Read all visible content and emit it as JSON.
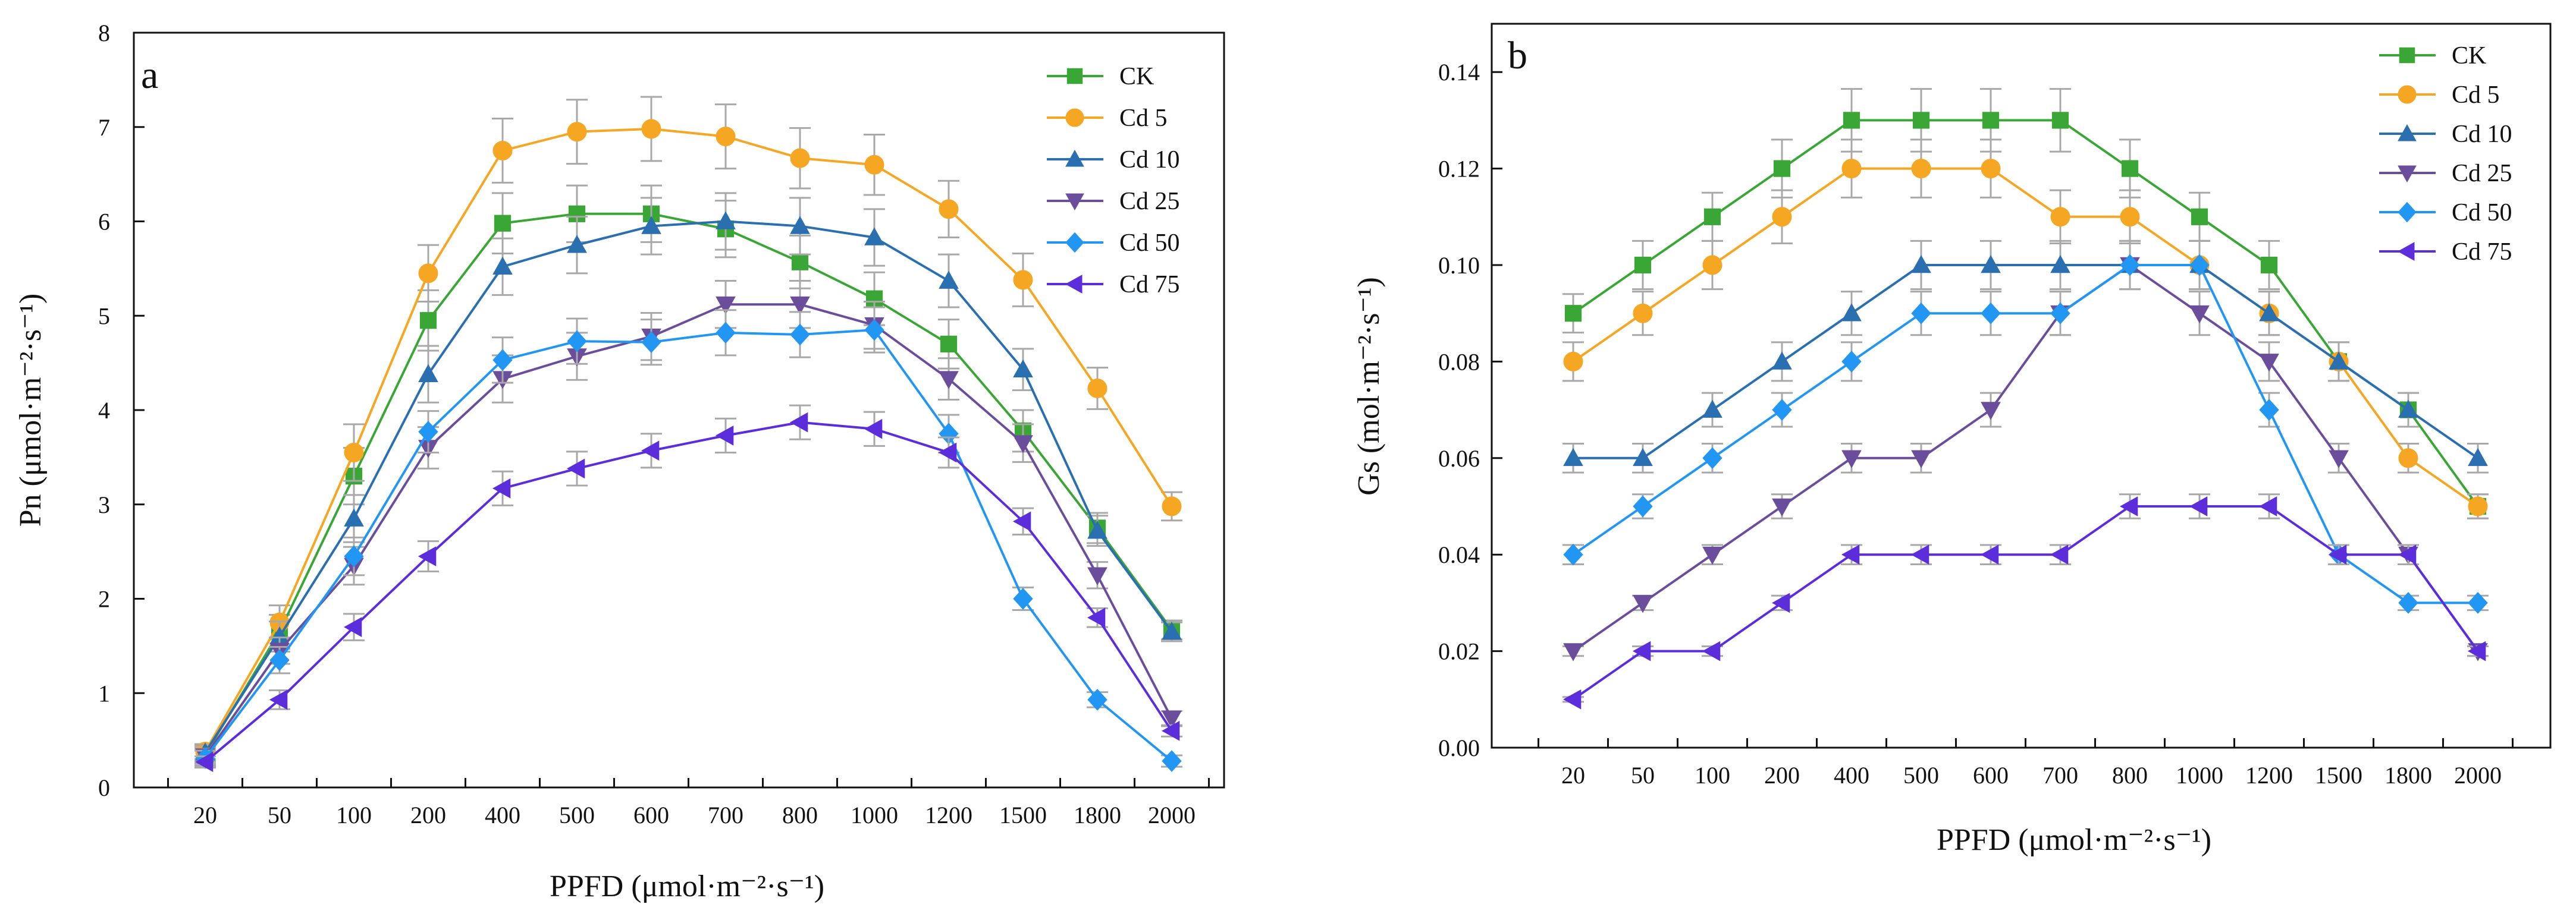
{
  "colors": {
    "CK": "#3aa635",
    "Cd 5": "#f5a623",
    "Cd 10": "#2a6fb0",
    "Cd 25": "#6b4e9b",
    "Cd 50": "#2196f3",
    "Cd 75": "#5b2ddb",
    "axis": "#111111",
    "error": "#a8a8a8"
  },
  "chart_data": [
    {
      "type": "line",
      "panel": "a",
      "xlabel": "PPFD (μmol·m⁻²·s⁻¹)",
      "ylabel": "Pn  (μmol·m⁻²·s⁻¹)",
      "ylim": [
        0,
        8
      ],
      "yticks": [
        "0",
        "1",
        "2",
        "3",
        "4",
        "5",
        "6",
        "7",
        "8"
      ],
      "categories": [
        "20",
        "50",
        "100",
        "200",
        "400",
        "500",
        "600",
        "700",
        "800",
        "1000",
        "1200",
        "1500",
        "1800",
        "2000"
      ],
      "legend_position": "top-right",
      "series": [
        {
          "name": "CK",
          "marker": "square",
          "values": [
            0.35,
            1.65,
            3.3,
            4.95,
            5.98,
            6.08,
            6.08,
            5.92,
            5.57,
            5.18,
            4.7,
            3.78,
            2.75,
            1.67
          ],
          "errors": [
            0.08,
            0.18,
            0.3,
            0.32,
            0.32,
            0.3,
            0.3,
            0.3,
            0.28,
            0.28,
            0.26,
            0.22,
            0.16,
            0.1
          ]
        },
        {
          "name": "Cd 5",
          "marker": "circle",
          "values": [
            0.38,
            1.75,
            3.55,
            5.45,
            6.75,
            6.95,
            6.98,
            6.9,
            6.67,
            6.6,
            6.13,
            5.38,
            4.23,
            2.98
          ],
          "errors": [
            0.08,
            0.18,
            0.3,
            0.3,
            0.34,
            0.34,
            0.34,
            0.34,
            0.32,
            0.32,
            0.3,
            0.28,
            0.22,
            0.15
          ]
        },
        {
          "name": "Cd 10",
          "marker": "triangle-up",
          "values": [
            0.37,
            1.6,
            2.85,
            4.38,
            5.52,
            5.75,
            5.95,
            6.0,
            5.95,
            5.83,
            5.37,
            4.43,
            2.72,
            1.65
          ],
          "errors": [
            0.08,
            0.16,
            0.25,
            0.3,
            0.3,
            0.3,
            0.3,
            0.3,
            0.3,
            0.3,
            0.28,
            0.22,
            0.16,
            0.1
          ]
        },
        {
          "name": "Cd 25",
          "marker": "triangle-down",
          "values": [
            0.33,
            1.45,
            2.35,
            3.6,
            4.33,
            4.57,
            4.78,
            5.12,
            5.12,
            4.9,
            4.33,
            3.65,
            2.25,
            0.73
          ],
          "errors": [
            0.08,
            0.14,
            0.2,
            0.22,
            0.25,
            0.25,
            0.25,
            0.25,
            0.25,
            0.25,
            0.22,
            0.2,
            0.14,
            0.08
          ]
        },
        {
          "name": "Cd 50",
          "marker": "diamond",
          "values": [
            0.31,
            1.35,
            2.45,
            3.77,
            4.53,
            4.73,
            4.72,
            4.82,
            4.8,
            4.85,
            3.75,
            2.0,
            0.93,
            0.28
          ],
          "errors": [
            0.08,
            0.14,
            0.2,
            0.22,
            0.24,
            0.24,
            0.24,
            0.24,
            0.24,
            0.24,
            0.2,
            0.12,
            0.08,
            0.06
          ]
        },
        {
          "name": "Cd 75",
          "marker": "triangle-left",
          "values": [
            0.27,
            0.93,
            1.7,
            2.45,
            3.17,
            3.38,
            3.57,
            3.73,
            3.87,
            3.8,
            3.55,
            2.82,
            1.8,
            0.6
          ],
          "errors": [
            0.06,
            0.1,
            0.14,
            0.16,
            0.18,
            0.18,
            0.18,
            0.18,
            0.18,
            0.18,
            0.16,
            0.14,
            0.1,
            0.06
          ]
        }
      ]
    },
    {
      "type": "line",
      "panel": "b",
      "xlabel": "PPFD (μmol·m⁻²·s⁻¹)",
      "ylabel": "Gs (mol·m⁻²·s⁻¹)",
      "ylim": [
        0,
        0.15
      ],
      "yticks": [
        "0.00",
        "0.02",
        "0.04",
        "0.06",
        "0.08",
        "0.10",
        "0.12",
        "0.14"
      ],
      "categories": [
        "20",
        "50",
        "100",
        "200",
        "400",
        "500",
        "600",
        "700",
        "800",
        "1000",
        "1200",
        "1500",
        "1800",
        "2000"
      ],
      "legend_position": "top-right",
      "series": [
        {
          "name": "CK",
          "marker": "square",
          "values": [
            0.09,
            0.1,
            0.11,
            0.12,
            0.13,
            0.13,
            0.13,
            0.13,
            0.12,
            0.11,
            0.1,
            0.08,
            0.07,
            0.05
          ],
          "errors": [
            0.004,
            0.005,
            0.005,
            0.006,
            0.0065,
            0.0065,
            0.0065,
            0.0065,
            0.006,
            0.005,
            0.005,
            0.004,
            0.0035,
            0.0025
          ]
        },
        {
          "name": "Cd 5",
          "marker": "circle",
          "values": [
            0.08,
            0.09,
            0.1,
            0.11,
            0.12,
            0.12,
            0.12,
            0.11,
            0.11,
            0.1,
            0.09,
            0.08,
            0.06,
            0.05
          ],
          "errors": [
            0.004,
            0.0045,
            0.005,
            0.0055,
            0.006,
            0.006,
            0.006,
            0.0055,
            0.0055,
            0.005,
            0.0045,
            0.004,
            0.003,
            0.0025
          ]
        },
        {
          "name": "Cd 10",
          "marker": "triangle-up",
          "values": [
            0.06,
            0.06,
            0.07,
            0.08,
            0.09,
            0.1,
            0.1,
            0.1,
            0.1,
            0.1,
            0.09,
            0.08,
            0.07,
            0.06
          ],
          "errors": [
            0.003,
            0.003,
            0.0035,
            0.004,
            0.0045,
            0.005,
            0.005,
            0.005,
            0.005,
            0.005,
            0.0045,
            0.004,
            0.0035,
            0.003
          ]
        },
        {
          "name": "Cd 25",
          "marker": "triangle-down",
          "values": [
            0.02,
            0.03,
            0.04,
            0.05,
            0.06,
            0.06,
            0.07,
            0.09,
            0.1,
            0.09,
            0.08,
            0.06,
            0.04,
            0.02
          ],
          "errors": [
            0.001,
            0.0015,
            0.002,
            0.0025,
            0.003,
            0.003,
            0.0035,
            0.0045,
            0.005,
            0.0045,
            0.004,
            0.003,
            0.002,
            0.001
          ]
        },
        {
          "name": "Cd 50",
          "marker": "diamond",
          "values": [
            0.04,
            0.05,
            0.06,
            0.07,
            0.08,
            0.09,
            0.09,
            0.09,
            0.1,
            0.1,
            0.07,
            0.04,
            0.03,
            0.03
          ],
          "errors": [
            0.002,
            0.0025,
            0.003,
            0.0035,
            0.004,
            0.0045,
            0.0045,
            0.0045,
            0.005,
            0.005,
            0.0035,
            0.002,
            0.0015,
            0.0015
          ]
        },
        {
          "name": "Cd 75",
          "marker": "triangle-left",
          "values": [
            0.01,
            0.02,
            0.02,
            0.03,
            0.04,
            0.04,
            0.04,
            0.04,
            0.05,
            0.05,
            0.05,
            0.04,
            0.04,
            0.02
          ],
          "errors": [
            0.0005,
            0.001,
            0.001,
            0.0015,
            0.002,
            0.002,
            0.002,
            0.002,
            0.0025,
            0.0025,
            0.0025,
            0.002,
            0.002,
            0.001
          ]
        }
      ]
    }
  ]
}
